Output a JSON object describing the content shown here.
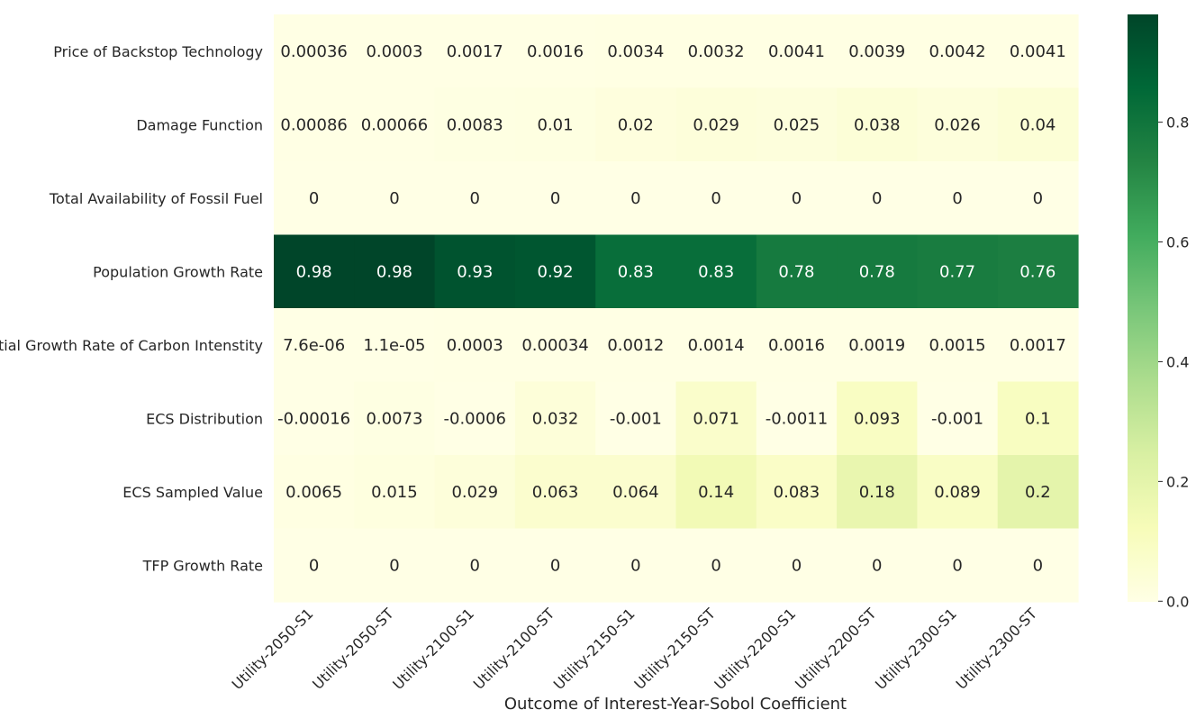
{
  "chart_data": {
    "type": "heatmap",
    "title": "",
    "xlabel": "Outcome of Interest-Year-Sobol Coefficient",
    "ylabel": "",
    "columns": [
      "Utility-2050-S1",
      "Utility-2050-ST",
      "Utility-2100-S1",
      "Utility-2100-ST",
      "Utility-2150-S1",
      "Utility-2150-ST",
      "Utility-2200-S1",
      "Utility-2200-ST",
      "Utility-2300-S1",
      "Utility-2300-ST"
    ],
    "rows": [
      "Price of Backstop Technology",
      "Damage Function",
      "Total Availability of Fossil Fuel",
      "Population Growth Rate",
      "Initial Growth Rate of Carbon Intenstity",
      "ECS Distribution",
      "ECS Sampled Value",
      "TFP Growth Rate"
    ],
    "labels": [
      [
        "0.00036",
        "0.0003",
        "0.0017",
        "0.0016",
        "0.0034",
        "0.0032",
        "0.0041",
        "0.0039",
        "0.0042",
        "0.0041"
      ],
      [
        "0.00086",
        "0.00066",
        "0.0083",
        "0.01",
        "0.02",
        "0.029",
        "0.025",
        "0.038",
        "0.026",
        "0.04"
      ],
      [
        "0",
        "0",
        "0",
        "0",
        "0",
        "0",
        "0",
        "0",
        "0",
        "0"
      ],
      [
        "0.98",
        "0.98",
        "0.93",
        "0.92",
        "0.83",
        "0.83",
        "0.78",
        "0.78",
        "0.77",
        "0.76"
      ],
      [
        "7.6e-06",
        "1.1e-05",
        "0.0003",
        "0.00034",
        "0.0012",
        "0.0014",
        "0.0016",
        "0.0019",
        "0.0015",
        "0.0017"
      ],
      [
        "-0.00016",
        "0.0073",
        "-0.0006",
        "0.032",
        "-0.001",
        "0.071",
        "-0.0011",
        "0.093",
        "-0.001",
        "0.1"
      ],
      [
        "0.0065",
        "0.015",
        "0.029",
        "0.063",
        "0.064",
        "0.14",
        "0.083",
        "0.18",
        "0.089",
        "0.2"
      ],
      [
        "0",
        "0",
        "0",
        "0",
        "0",
        "0",
        "0",
        "0",
        "0",
        "0"
      ]
    ],
    "values": [
      [
        0.00036,
        0.0003,
        0.0017,
        0.0016,
        0.0034,
        0.0032,
        0.0041,
        0.0039,
        0.0042,
        0.0041
      ],
      [
        0.00086,
        0.00066,
        0.0083,
        0.01,
        0.02,
        0.029,
        0.025,
        0.038,
        0.026,
        0.04
      ],
      [
        0,
        0,
        0,
        0,
        0,
        0,
        0,
        0,
        0,
        0
      ],
      [
        0.98,
        0.98,
        0.93,
        0.92,
        0.83,
        0.83,
        0.78,
        0.78,
        0.77,
        0.76
      ],
      [
        7.6e-06,
        1.1e-05,
        0.0003,
        0.00034,
        0.0012,
        0.0014,
        0.0016,
        0.0019,
        0.0015,
        0.0017
      ],
      [
        -0.00016,
        0.0073,
        -0.0006,
        0.032,
        -0.001,
        0.071,
        -0.0011,
        0.093,
        -0.001,
        0.1
      ],
      [
        0.0065,
        0.015,
        0.029,
        0.063,
        0.064,
        0.14,
        0.083,
        0.18,
        0.089,
        0.2
      ],
      [
        0,
        0,
        0,
        0,
        0,
        0,
        0,
        0,
        0,
        0
      ]
    ],
    "vmin": -0.0011,
    "vmax": 0.98,
    "colormap": "YlGn",
    "colormap_stops": [
      "#ffffe5",
      "#f7fcb9",
      "#d9f0a3",
      "#addd8e",
      "#78c679",
      "#41ab5d",
      "#238443",
      "#006837",
      "#004529"
    ],
    "colorbar": {
      "ticks": [
        0.0,
        0.2,
        0.4,
        0.6,
        0.8
      ],
      "tick_labels": [
        "0.0",
        "0.2",
        "0.4",
        "0.6",
        "0.8"
      ],
      "position": "right"
    },
    "annotation_colors": {
      "light_bg": "#262626",
      "dark_bg": "#ffffff"
    },
    "grid": false,
    "legend": "none"
  }
}
